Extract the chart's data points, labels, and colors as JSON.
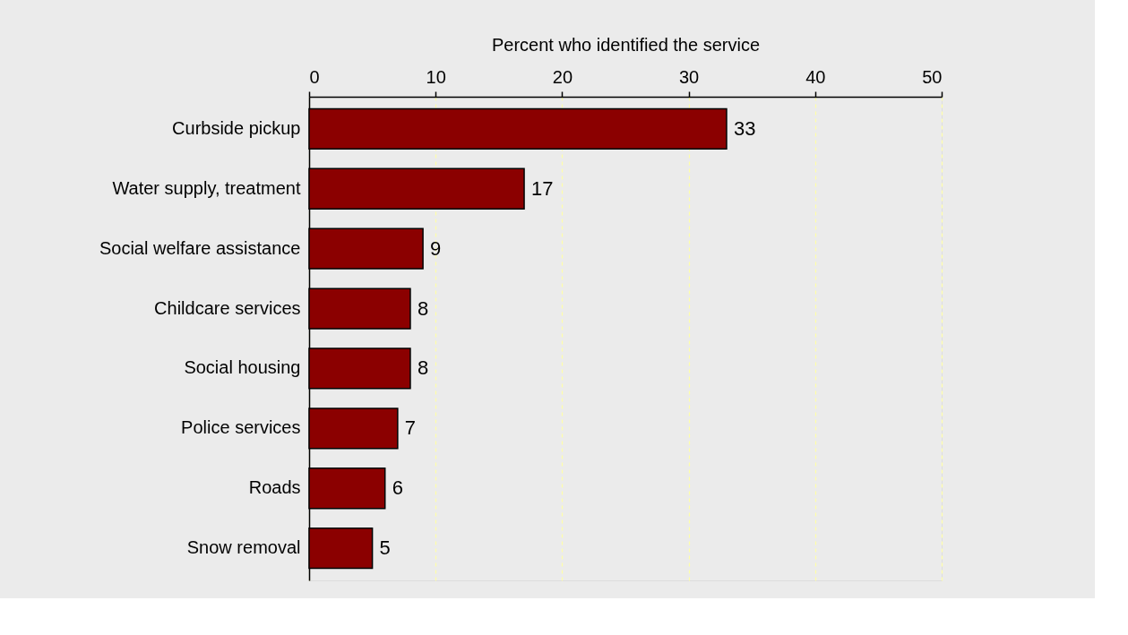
{
  "chart_data": {
    "type": "bar",
    "orientation": "horizontal",
    "xlabel": "Percent who identified the service",
    "categories": [
      "Curbside pickup",
      "Water supply, treatment",
      "Social welfare assistance",
      "Childcare services",
      "Social housing",
      "Police services",
      "Roads",
      "Snow removal"
    ],
    "values": [
      33,
      17,
      9,
      8,
      8,
      7,
      6,
      5
    ],
    "color": "#8b0000",
    "xlim": [
      0,
      50
    ],
    "xticks": [
      0,
      10,
      20,
      30,
      40,
      50
    ],
    "grid": "x",
    "data_labels": true
  }
}
